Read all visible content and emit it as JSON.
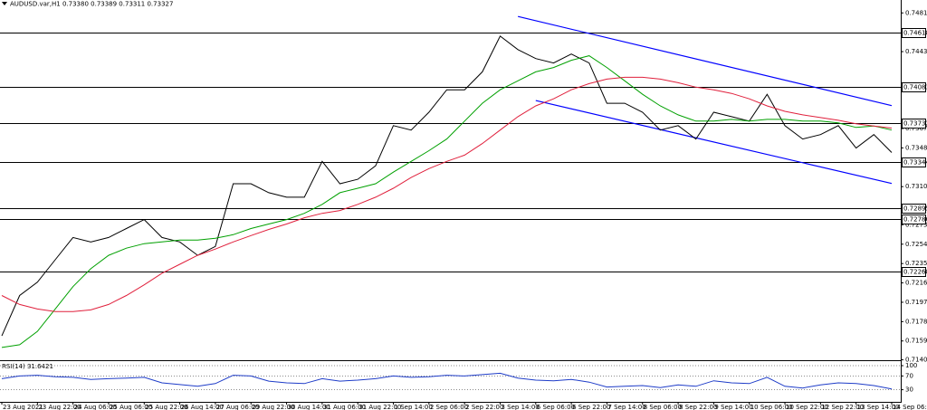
{
  "chart_data": [
    {
      "type": "line",
      "title": "AUDUSD.var,H1  0.73380 0.73389 0.73311 0.73327",
      "categories": [
        "23 Aug 2021",
        null,
        "23 Aug 22:00",
        null,
        "24 Aug 06:00",
        null,
        "25 Aug 06:00",
        null,
        "25 Aug 22:00",
        null,
        "26 Aug 14:00",
        null,
        "27 Aug 06:00",
        null,
        "29 Aug 22:00",
        null,
        "30 Aug 14:00",
        null,
        "31 Aug 06:00",
        null,
        "31 Aug 22:00",
        null,
        "1 Sep 14:00",
        null,
        "2 Sep 06:00",
        null,
        "2 Sep 22:00",
        null,
        "3 Sep 14:00",
        null,
        "6 Sep 06:00",
        null,
        "6 Sep 22:00",
        null,
        "7 Sep 14:00",
        null,
        "8 Sep 06:00",
        null,
        "8 Sep 22:00",
        null,
        "9 Sep 14:00",
        null,
        "10 Sep 06:00",
        null,
        "10 Sep 22:00",
        null,
        "12 Sep 22:00",
        null,
        "13 Sep 14:00",
        null,
        "14 Sep 06:00"
      ],
      "series": [
        {
          "color": "#000000",
          "values": [
            0.7164,
            0.72036,
            0.72167,
            0.72387,
            0.72606,
            0.72562,
            0.72606,
            0.72694,
            0.72782,
            0.72606,
            0.72562,
            0.72431,
            0.72518,
            0.73133,
            0.73133,
            0.73045,
            0.73001,
            0.73001,
            0.73353,
            0.73133,
            0.73177,
            0.73309,
            0.73704,
            0.7366,
            0.73835,
            0.74055,
            0.74055,
            0.74231,
            0.74582,
            0.7445,
            0.74362,
            0.74318,
            0.74406,
            0.74318,
            0.73923,
            0.73923,
            0.73835,
            0.7366,
            0.73704,
            0.73572,
            0.73835,
            0.73792,
            0.73748,
            0.74011,
            0.73704,
            0.73572,
            0.73616,
            0.73704,
            0.73484,
            0.73616,
            0.7344
          ]
        },
        {
          "color": "#00a000",
          "values": [
            0.71526,
            0.71553,
            0.71684,
            0.71904,
            0.72123,
            0.72299,
            0.72431,
            0.72501,
            0.72545,
            0.72562,
            0.7258,
            0.7258,
            0.72598,
            0.72633,
            0.72694,
            0.72738,
            0.72782,
            0.72843,
            0.72931,
            0.73045,
            0.73089,
            0.73133,
            0.73247,
            0.73353,
            0.73458,
            0.73572,
            0.73748,
            0.73923,
            0.74055,
            0.74143,
            0.74231,
            0.74274,
            0.74345,
            0.74389,
            0.74274,
            0.74143,
            0.74011,
            0.73897,
            0.73809,
            0.73748,
            0.73748,
            0.73765,
            0.73748,
            0.73765,
            0.73765,
            0.73748,
            0.73748,
            0.7373,
            0.73686,
            0.737,
            0.7366
          ]
        },
        {
          "color": "#e0203c",
          "values": [
            0.72036,
            0.71948,
            0.71904,
            0.71878,
            0.71878,
            0.71895,
            0.71948,
            0.72036,
            0.72141,
            0.72255,
            0.72343,
            0.72431,
            0.72492,
            0.72562,
            0.72624,
            0.72685,
            0.72738,
            0.72799,
            0.72843,
            0.7287,
            0.72931,
            0.73001,
            0.73089,
            0.73195,
            0.73282,
            0.73353,
            0.73414,
            0.73528,
            0.7366,
            0.73792,
            0.73897,
            0.73967,
            0.74055,
            0.74116,
            0.7416,
            0.74178,
            0.74178,
            0.7416,
            0.74125,
            0.74081,
            0.74055,
            0.7402,
            0.73967,
            0.73897,
            0.73844,
            0.73809,
            0.73783,
            0.73756,
            0.73721,
            0.737,
            0.7368
          ]
        }
      ],
      "ylim": [
        0.7141,
        0.7491
      ],
      "yticks": [
        {
          "value": 0.7481,
          "label": "0.74810"
        },
        {
          "value": 0.7443,
          "label": "0.74430"
        },
        0.73675,
        0.73485,
        0.73105,
        {
          "value": 0.7273,
          "label": "0.72730"
        },
        {
          "value": 0.7254,
          "label": "0.72540"
        },
        {
          "value": 0.7235,
          "label": "0.72350"
        },
        {
          "value": 0.7216,
          "label": "0.72160"
        },
        {
          "value": 0.7197,
          "label": "0.71970"
        },
        {
          "value": 0.7178,
          "label": "0.71780"
        },
        {
          "value": 0.7159,
          "label": "0.71590"
        },
        0.71405
      ],
      "levels": {
        "color": "#000000",
        "values": [
          0.74618,
          0.74083,
          0.73732,
          0.73344,
          0.72895,
          0.72786,
          0.72268
        ]
      },
      "trendlines": [
        {
          "color": "#0000ff",
          "x": [
            29,
            50
          ],
          "values": [
            0.74775,
            0.739
          ]
        },
        {
          "color": "#0000ff",
          "x": [
            30,
            50
          ],
          "values": [
            0.7395,
            0.73136
          ]
        }
      ],
      "grid": false
    },
    {
      "type": "line",
      "title": "RSI(14) 31.6421",
      "series": [
        {
          "color": "#1e3cc8",
          "values": [
            62,
            70,
            72,
            68,
            66,
            60,
            62,
            64,
            66,
            50,
            45,
            40,
            48,
            72,
            70,
            55,
            50,
            48,
            62,
            55,
            58,
            62,
            70,
            66,
            68,
            72,
            70,
            74,
            78,
            64,
            58,
            56,
            60,
            52,
            38,
            40,
            42,
            36,
            44,
            40,
            56,
            50,
            48,
            66,
            40,
            35,
            44,
            50,
            48,
            42,
            32
          ]
        }
      ],
      "ylim": [
        0,
        100
      ],
      "yticks": [
        30,
        70,
        100
      ],
      "grid": true
    }
  ]
}
